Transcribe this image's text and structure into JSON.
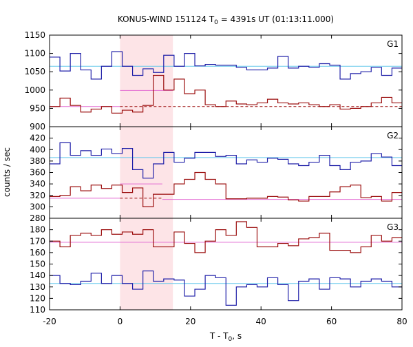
{
  "chart_data": {
    "type": "line",
    "title_main": "KONUS-WIND 151124 T",
    "title_sub": "0",
    "title_rest": " = 4391s UT (01:13:11.000)",
    "xlabel_main": "T - T",
    "xlabel_sub": "0",
    "xlabel_rest": ", s",
    "ylabel": "counts / sec",
    "xlim": [
      -20,
      80
    ],
    "xticks": [
      -20,
      0,
      20,
      40,
      60,
      80
    ],
    "xtick_labels": [
      "-20",
      "0",
      "20",
      "40",
      "60",
      "80"
    ],
    "highlight_interval": [
      0,
      15
    ],
    "colors": {
      "blue_series": "#1f1fa8",
      "red_series": "#9b0d0d",
      "blue_background": "#66c8ec",
      "red_background": "#e26bd2",
      "red_fit": "#e26bd2",
      "highlight": "#fde4e7"
    },
    "panels": [
      {
        "label": "G1",
        "ylim": [
          900,
          1150
        ],
        "yticks": [
          900,
          950,
          1000,
          1050,
          1100,
          1150
        ],
        "ytick_labels": [
          "900",
          "950",
          "1000",
          "1050",
          "1100",
          "1150"
        ],
        "series": [
          {
            "color_key": "blue_series",
            "bin_width": 2.944,
            "start": -20,
            "values": [
              1090,
              1052,
              1100,
              1055,
              1030,
              1065,
              1105,
              1065,
              1040,
              1058,
              1048,
              1095,
              1065,
              1100,
              1066,
              1070,
              1068,
              1068,
              1062,
              1055,
              1055,
              1060,
              1092,
              1060,
              1065,
              1062,
              1072,
              1068,
              1030,
              1045,
              1050,
              1062,
              1040,
              1060,
              1060,
              1050,
              1082,
              1052,
              1063,
              1042,
              1062,
              1040,
              1100,
              1065,
              1060,
              1062,
              1078,
              1060,
              1030,
              1065,
              1068,
              1070,
              1042,
              1030,
              1065
            ]
          },
          {
            "color_key": "red_series",
            "bin_width": 2.944,
            "start": -20,
            "values": [
              955,
              978,
              958,
              940,
              948,
              955,
              937,
              945,
              940,
              958,
              1040,
              1000,
              1030,
              990,
              1000,
              960,
              955,
              970,
              962,
              960,
              965,
              975,
              965,
              962,
              965,
              960,
              955,
              960,
              948,
              950,
              955,
              965,
              980,
              965,
              960,
              952,
              975,
              980,
              958,
              966,
              978,
              960,
              952,
              1002,
              960,
              945,
              960,
              976,
              960,
              966,
              972,
              958,
              950,
              966,
              960
            ]
          }
        ],
        "backgrounds": [
          {
            "color_key": "blue_background",
            "value": 1065,
            "x": [
              -20,
              80
            ],
            "dashed": false
          },
          {
            "color_key": "red_background",
            "value": 955,
            "x": [
              -20,
              0
            ],
            "dashed": false
          },
          {
            "color_key": "red_background",
            "value": 999,
            "x": [
              0,
              15
            ],
            "dashed": false
          },
          {
            "color_key": "red_series",
            "value": 955,
            "x": [
              0,
              80
            ],
            "dashed": true
          }
        ]
      },
      {
        "label": "G2",
        "ylim": [
          280,
          440
        ],
        "yticks": [
          280,
          300,
          320,
          340,
          360,
          380,
          400,
          420
        ],
        "ytick_labels": [
          "280",
          "300",
          "320",
          "340",
          "360",
          "380",
          "400",
          "420"
        ],
        "series": [
          {
            "color_key": "blue_series",
            "bin_width": 2.944,
            "start": -20,
            "values": [
              375,
              412,
              390,
              398,
              390,
              401,
              393,
              402,
              365,
              350,
              375,
              395,
              378,
              385,
              395,
              395,
              388,
              390,
              375,
              382,
              378,
              385,
              383,
              375,
              372,
              378,
              390,
              372,
              365,
              378,
              380,
              393,
              387,
              372,
              388,
              380,
              380,
              373,
              378,
              372,
              392,
              380,
              375,
              370,
              387,
              372,
              380,
              390,
              375,
              360,
              380,
              380,
              395,
              378,
              380
            ]
          },
          {
            "color_key": "red_series",
            "bin_width": 2.944,
            "start": -20,
            "values": [
              318,
              320,
              335,
              328,
              338,
              332,
              338,
              325,
              333,
              300,
              322,
              322,
              340,
              348,
              360,
              348,
              340,
              314,
              314,
              315,
              315,
              318,
              317,
              312,
              310,
              318,
              318,
              326,
              335,
              338,
              316,
              318,
              310,
              325,
              318,
              318,
              313,
              318,
              318,
              312,
              322,
              330,
              316,
              318,
              325,
              315,
              326,
              322,
              310,
              315,
              313,
              323,
              315,
              310,
              316
            ]
          }
        ],
        "backgrounds": [
          {
            "color_key": "blue_background",
            "value": 386,
            "x": [
              -20,
              80
            ],
            "dashed": false
          },
          {
            "color_key": "red_background",
            "value": 315,
            "x": [
              -20,
              0
            ],
            "dashed": false
          },
          {
            "color_key": "red_background",
            "value": 340,
            "x": [
              0,
              12
            ],
            "dashed": false
          },
          {
            "color_key": "red_series",
            "value": 315,
            "x": [
              0,
              12
            ],
            "dashed": true
          },
          {
            "color_key": "red_background",
            "value": 313,
            "x": [
              12,
              80
            ],
            "dashed": false
          }
        ]
      },
      {
        "label": "G3",
        "ylim": [
          110,
          190
        ],
        "yticks": [
          110,
          120,
          130,
          140,
          150,
          160,
          170,
          180,
          190
        ],
        "ytick_labels": [
          "110",
          "120",
          "130",
          "140",
          "150",
          "160",
          "170",
          "180",
          "190"
        ],
        "series": [
          {
            "color_key": "red_series",
            "bin_width": 2.944,
            "start": -20,
            "values": [
              170,
              165,
              175,
              177,
              175,
              180,
              176,
              178,
              176,
              180,
              165,
              165,
              178,
              168,
              160,
              170,
              180,
              175,
              187,
              182,
              165,
              165,
              168,
              166,
              172,
              173,
              177,
              162,
              162,
              160,
              165,
              175,
              170,
              173,
              168,
              160,
              168,
              180,
              172,
              174,
              167,
              163,
              172,
              165,
              160,
              177,
              168,
              170,
              175,
              160,
              170,
              173,
              185,
              168,
              170
            ]
          },
          {
            "color_key": "blue_series",
            "bin_width": 2.944,
            "start": -20,
            "values": [
              140,
              133,
              132,
              135,
              142,
              133,
              140,
              133,
              128,
              144,
              135,
              137,
              136,
              122,
              128,
              140,
              138,
              114,
              130,
              132,
              130,
              138,
              132,
              118,
              135,
              137,
              128,
              138,
              137,
              130,
              135,
              137,
              135,
              130,
              135,
              132,
              130,
              132,
              126,
              140,
              134,
              132,
              128,
              117,
              137,
              142,
              132,
              135,
              128,
              135,
              136,
              142,
              130,
              117,
              132
            ]
          }
        ],
        "backgrounds": [
          {
            "color_key": "red_background",
            "value": 169,
            "x": [
              -20,
              80
            ],
            "dashed": false
          },
          {
            "color_key": "blue_background",
            "value": 133,
            "x": [
              -20,
              80
            ],
            "dashed": false
          }
        ]
      }
    ]
  }
}
